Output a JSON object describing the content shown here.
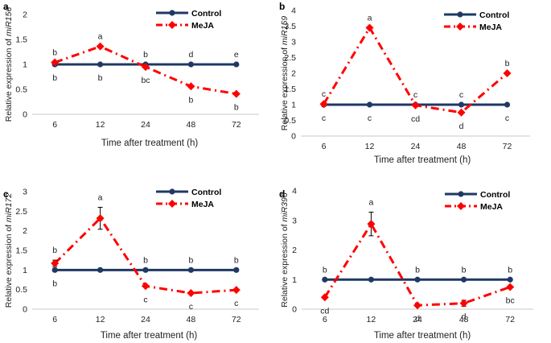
{
  "chart_data": [
    {
      "panel": "a",
      "type": "line",
      "gene": "miR156",
      "ylabel_prefix": "Relative expression of ",
      "xlabel": "Time after treatment (h)",
      "categories": [
        "6",
        "12",
        "24",
        "48",
        "72"
      ],
      "ylim": [
        0,
        2
      ],
      "yticks": [
        "0",
        "0.5",
        "1",
        "1.5",
        "2"
      ],
      "series": [
        {
          "name": "Control",
          "values": [
            1,
            1,
            1,
            1,
            1
          ],
          "color": "#1f3864"
        },
        {
          "name": "MeJA",
          "values": [
            1.04,
            1.36,
            0.95,
            0.56,
            0.41
          ],
          "errors": [
            0.03,
            0.03,
            0.04,
            0.03,
            0.03
          ],
          "color": "#ff0000"
        }
      ],
      "letters_meja": [
        "b",
        "a",
        "b",
        "d",
        "e"
      ],
      "letters_control": [
        "b",
        "b",
        "bc",
        "b",
        "b"
      ]
    },
    {
      "panel": "b",
      "type": "line",
      "gene": "miR159",
      "ylabel_prefix": "Relative expression of ",
      "xlabel": "Time after treatment (h)",
      "categories": [
        "6",
        "12",
        "24",
        "48",
        "72"
      ],
      "ylim": [
        0,
        4
      ],
      "yticks": [
        "0",
        "0.5",
        "1",
        "1.5",
        "2",
        "2.5",
        "3",
        "3.5",
        "4"
      ],
      "series": [
        {
          "name": "Control",
          "values": [
            1,
            1,
            1,
            1,
            1
          ],
          "color": "#1f3864"
        },
        {
          "name": "MeJA",
          "values": [
            1.02,
            3.45,
            0.98,
            0.75,
            2.0
          ],
          "errors": [
            0.03,
            0.05,
            0.03,
            0.04,
            0.04
          ],
          "color": "#ff0000"
        }
      ],
      "letters_meja": [
        "c",
        "a",
        "c",
        "c",
        "b"
      ],
      "letters_control": [
        "c",
        "c",
        "cd",
        "d",
        "c"
      ]
    },
    {
      "panel": "c",
      "type": "line",
      "gene": "miR172",
      "ylabel_prefix": "Relative expression of ",
      "xlabel": "Time after treatment (h)",
      "categories": [
        "6",
        "12",
        "24",
        "48",
        "72"
      ],
      "ylim": [
        0,
        3
      ],
      "yticks": [
        "0",
        "0.5",
        "1",
        "1.5",
        "2",
        "2.5",
        "3"
      ],
      "series": [
        {
          "name": "Control",
          "values": [
            1,
            1,
            1,
            1,
            1
          ],
          "color": "#1f3864"
        },
        {
          "name": "MeJA",
          "values": [
            1.17,
            2.32,
            0.59,
            0.41,
            0.49
          ],
          "errors": [
            0.08,
            0.28,
            0.04,
            0.03,
            0.03
          ],
          "color": "#ff0000"
        }
      ],
      "letters_meja": [
        "b",
        "a",
        "b",
        "b",
        "b"
      ],
      "letters_control": [
        "b",
        "",
        "c",
        "c",
        "c"
      ]
    },
    {
      "panel": "d",
      "type": "line",
      "gene": "miR396",
      "ylabel_prefix": "Relative expression of ",
      "xlabel": "Time after treatment (h)",
      "categories": [
        "6",
        "12",
        "24",
        "48",
        "72"
      ],
      "ylim": [
        0,
        4
      ],
      "yticks": [
        "0",
        "1",
        "2",
        "3",
        "4"
      ],
      "series": [
        {
          "name": "Control",
          "values": [
            1,
            1,
            1,
            1,
            1
          ],
          "color": "#1f3864"
        },
        {
          "name": "MeJA",
          "values": [
            0.4,
            2.88,
            0.13,
            0.2,
            0.75
          ],
          "errors": [
            0.04,
            0.4,
            0.03,
            0.1,
            0.05
          ],
          "color": "#ff0000"
        }
      ],
      "letters_meja": [
        "b",
        "a",
        "b",
        "b",
        "b"
      ],
      "letters_control": [
        "cd",
        "",
        "d",
        "d",
        "bc"
      ]
    }
  ],
  "legend": {
    "control_label": "Control",
    "meja_label": "MeJA"
  }
}
